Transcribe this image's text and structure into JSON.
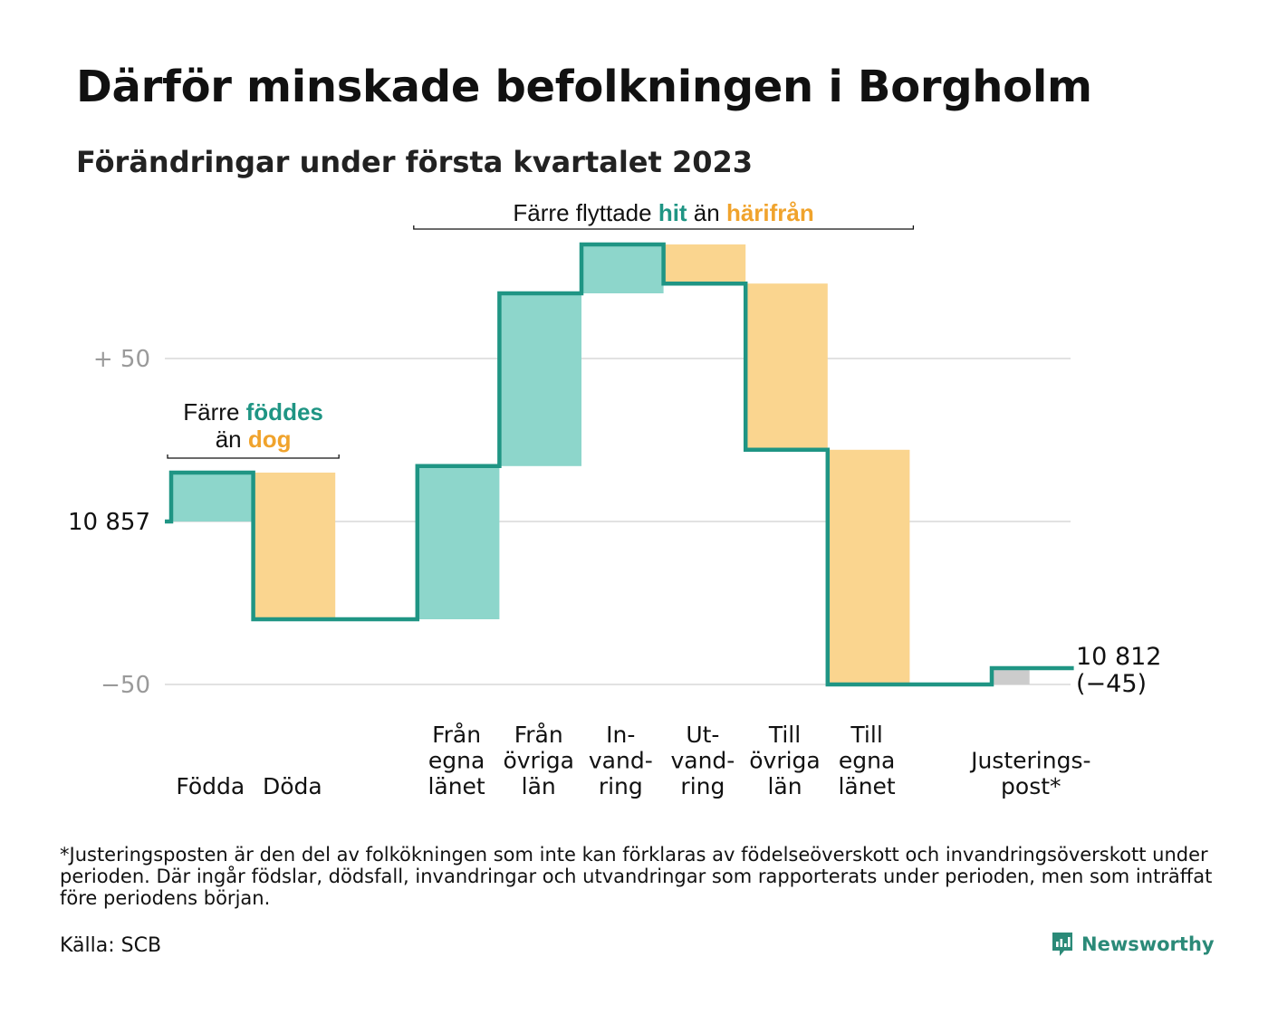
{
  "title": "Därför minskade befolkningen i Borgholm",
  "subtitle": "Förändringar under första kvartalet 2023",
  "footnote": "*Justeringsposten är den del av folkökningen som inte kan förklaras av födelseöverskott och invandringsöverskott under perioden. Där ingår födslar, dödsfall, invandringar och utvandringar som rapporterats under perioden, men som inträffat före periodens början.",
  "source": "Källa: SCB",
  "brand": {
    "name": "Newsworthy",
    "icon": "newsworthy-logo-icon"
  },
  "colors": {
    "inflow": "#8dd6cb",
    "outflow": "#fad58f",
    "adjustment": "#cccccc",
    "line": "#1f9584",
    "hit": "#1f9584",
    "harifran": "#f0a32c"
  },
  "chart_data": {
    "type": "waterfall",
    "start_value": 10857,
    "end_value": 10812,
    "end_label": [
      "10 812",
      "(−45)"
    ],
    "categories": [
      {
        "label": [
          "Födda"
        ],
        "change": 15,
        "kind": "inflow"
      },
      {
        "label": [
          "Döda"
        ],
        "change": -45,
        "kind": "outflow"
      },
      {
        "label": [],
        "change": 0,
        "kind": "gap"
      },
      {
        "label": [
          "Från",
          "egna",
          "länet"
        ],
        "change": 47,
        "kind": "inflow"
      },
      {
        "label": [
          "Från",
          "övriga",
          "län"
        ],
        "change": 53,
        "kind": "inflow"
      },
      {
        "label": [
          "In-",
          "vand-",
          "ring"
        ],
        "change": 15,
        "kind": "inflow"
      },
      {
        "label": [
          "Ut-",
          "vand-",
          "ring"
        ],
        "change": -12,
        "kind": "outflow"
      },
      {
        "label": [
          "Till",
          "övriga",
          "län"
        ],
        "change": -51,
        "kind": "outflow"
      },
      {
        "label": [
          "Till",
          "egna",
          "länet"
        ],
        "change": -72,
        "kind": "outflow"
      },
      {
        "label": [],
        "change": 0,
        "kind": "gap"
      },
      {
        "label": [
          "Justerings-",
          "post*"
        ],
        "change": 5,
        "kind": "adjustment"
      }
    ],
    "y_ticks": [
      {
        "offset": 50,
        "label": "+ 50",
        "muted": true
      },
      {
        "offset": 0,
        "label": "10 857",
        "muted": false
      },
      {
        "offset": -50,
        "label": "−50",
        "muted": true
      }
    ],
    "y_range": [
      -50,
      50
    ],
    "grid": true,
    "annotations": [
      {
        "parts": [
          {
            "text": "Färre ",
            "role": "plain"
          },
          {
            "text": "föddes",
            "role": "hit"
          }
        ],
        "line2": [
          {
            "text": "än ",
            "role": "plain"
          },
          {
            "text": "dog",
            "role": "harifran"
          }
        ],
        "span": [
          0,
          1
        ]
      },
      {
        "parts": [
          {
            "text": "Färre flyttade ",
            "role": "plain"
          },
          {
            "text": "hit",
            "role": "hit"
          },
          {
            "text": " än ",
            "role": "plain"
          },
          {
            "text": "härifrån",
            "role": "harifran"
          }
        ],
        "span": [
          3,
          8
        ]
      }
    ]
  }
}
